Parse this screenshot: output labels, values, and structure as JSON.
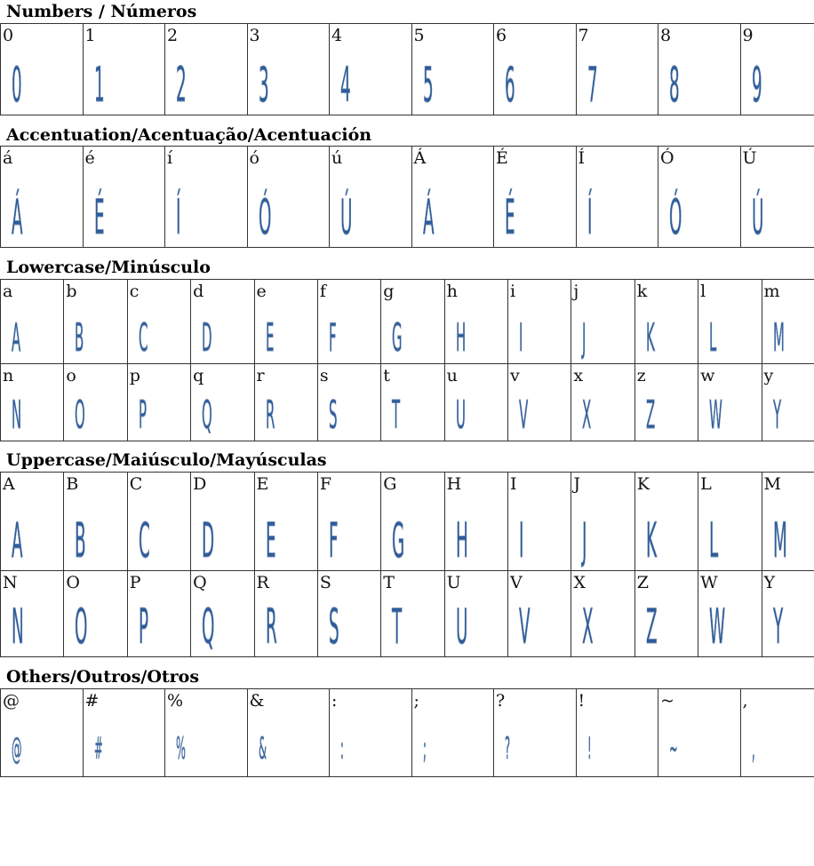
{
  "sections": [
    {
      "title": "Numbers / Números",
      "columns": 10,
      "rows": [
        {
          "labels": [
            "0",
            "1",
            "2",
            "3",
            "4",
            "5",
            "6",
            "7",
            "8",
            "9"
          ],
          "glyphs": [
            "0",
            "1",
            "2",
            "3",
            "4",
            "5",
            "6",
            "7",
            "8",
            "9"
          ]
        }
      ]
    },
    {
      "title": "Accentuation/Acentuação/Acentuación",
      "columns": 10,
      "rows": [
        {
          "labels": [
            "á",
            "é",
            "í",
            "ó",
            "ú",
            "Á",
            "É",
            "Í",
            "Ó",
            "Ú"
          ],
          "glyphs": [
            "Á",
            "É",
            "Í",
            "Ó",
            "Ú",
            "Á",
            "É",
            "Í",
            "Ó",
            "Ú"
          ]
        }
      ]
    },
    {
      "title": "Lowercase/Minúsculo",
      "columns": 13,
      "rows": [
        {
          "labels": [
            "a",
            "b",
            "c",
            "d",
            "e",
            "f",
            "g",
            "h",
            "i",
            "j",
            "k",
            "l",
            "m"
          ],
          "glyphs": [
            "A",
            "B",
            "C",
            "D",
            "E",
            "F",
            "G",
            "H",
            "I",
            "J",
            "K",
            "L",
            "M"
          ]
        },
        {
          "labels": [
            "n",
            "o",
            "p",
            "q",
            "r",
            "s",
            "t",
            "u",
            "v",
            "x",
            "z",
            "w",
            "y"
          ],
          "glyphs": [
            "N",
            "O",
            "P",
            "Q",
            "R",
            "S",
            "T",
            "U",
            "V",
            "X",
            "Z",
            "W",
            "Y"
          ]
        }
      ]
    },
    {
      "title": "Uppercase/Maiúsculo/Mayúsculas",
      "columns": 13,
      "rows": [
        {
          "labels": [
            "A",
            "B",
            "C",
            "D",
            "E",
            "F",
            "G",
            "H",
            "I",
            "J",
            "K",
            "L",
            "M"
          ],
          "glyphs": [
            "A",
            "B",
            "C",
            "D",
            "E",
            "F",
            "G",
            "H",
            "I",
            "J",
            "K",
            "L",
            "M"
          ]
        },
        {
          "labels": [
            "N",
            "O",
            "P",
            "Q",
            "R",
            "S",
            "T",
            "U",
            "V",
            "X",
            "Z",
            "W",
            "Y"
          ],
          "glyphs": [
            "N",
            "O",
            "P",
            "Q",
            "R",
            "S",
            "T",
            "U",
            "V",
            "X",
            "Z",
            "W",
            "Y"
          ]
        }
      ]
    },
    {
      "title": "Others/Outros/Otros",
      "columns": 10,
      "rows": [
        {
          "labels": [
            "@",
            "#",
            "%",
            "&",
            ":",
            ";",
            "?",
            "!",
            "~",
            ","
          ],
          "glyphs": [
            "@",
            "#",
            "%",
            "&",
            ":",
            ";",
            "?",
            "!",
            "~",
            ","
          ]
        }
      ]
    }
  ],
  "colors": {
    "glyph": "#2c5c9c",
    "border": "#333333"
  }
}
